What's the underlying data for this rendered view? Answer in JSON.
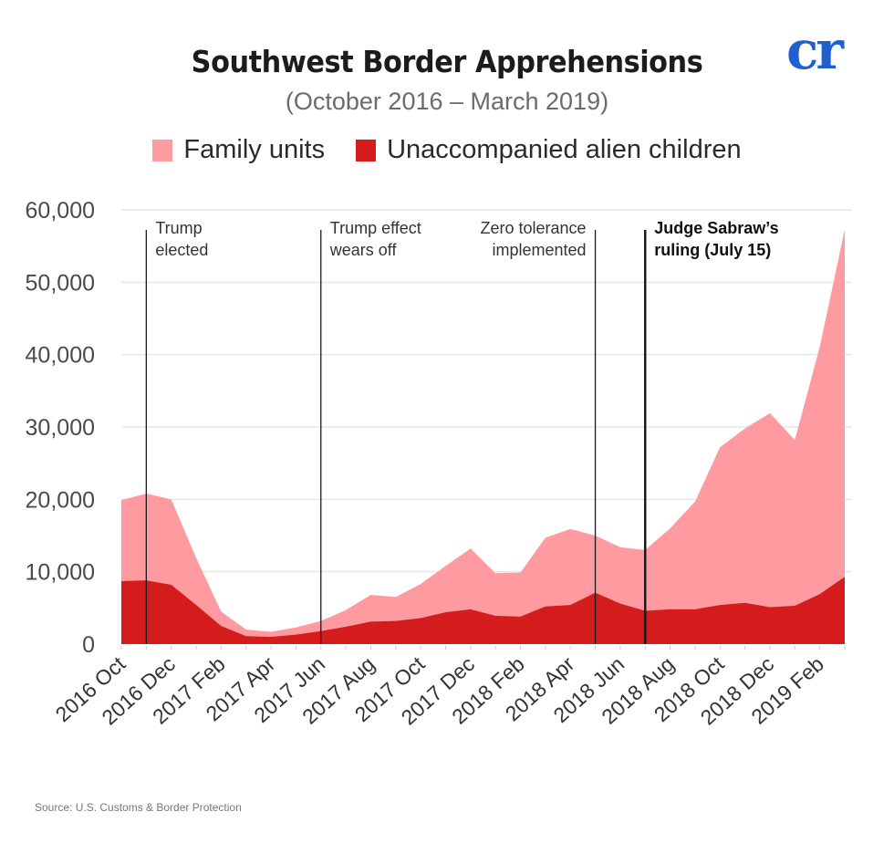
{
  "header": {
    "title": "Southwest Border Apprehensions",
    "subtitle": "(October 2016 – March 2019)",
    "logo_text": "cr"
  },
  "colors": {
    "family_units": "#ff9aa0",
    "unaccompanied": "#d41c1c",
    "logo": "#1f5fcf",
    "grid": "#e6e6e6"
  },
  "source": "Source: U.S. Customs & Border Protection",
  "chart_data": {
    "type": "area",
    "stacked": true,
    "title": "Southwest Border Apprehensions",
    "subtitle": "(October 2016 – March 2019)",
    "xlabel": "",
    "ylabel": "",
    "ylim": [
      0,
      60000
    ],
    "grid": true,
    "legend_position": "top-center",
    "y_ticks": [
      0,
      10000,
      20000,
      30000,
      40000,
      50000,
      60000
    ],
    "y_tick_labels": [
      "0",
      "10,000",
      "20,000",
      "30,000",
      "40,000",
      "50,000",
      "60,000"
    ],
    "x": [
      "2016 Oct",
      "2016 Nov",
      "2016 Dec",
      "2017 Jan",
      "2017 Feb",
      "2017 Mar",
      "2017 Apr",
      "2017 May",
      "2017 Jun",
      "2017 Jul",
      "2017 Aug",
      "2017 Sep",
      "2017 Oct",
      "2017 Nov",
      "2017 Dec",
      "2018 Jan",
      "2018 Feb",
      "2018 Mar",
      "2018 Apr",
      "2018 May",
      "2018 Jun",
      "2018 Jul",
      "2018 Aug",
      "2018 Sep",
      "2018 Oct",
      "2018 Nov",
      "2018 Dec",
      "2019 Jan",
      "2019 Feb",
      "2019 Mar"
    ],
    "x_tick_labels": [
      "2016 Oct",
      "2016 Dec",
      "2017 Feb",
      "2017 Apr",
      "2017 Jun",
      "2017 Aug",
      "2017 Oct",
      "2017 Dec",
      "2018 Feb",
      "2018 Apr",
      "2018 Jun",
      "2018 Aug",
      "2018 Oct",
      "2018 Dec",
      "2019 Feb"
    ],
    "series": [
      {
        "name": "Unaccompanied alien children",
        "values": [
          8700,
          8800,
          8200,
          5400,
          2500,
          1100,
          1000,
          1300,
          1800,
          2400,
          3100,
          3200,
          3600,
          4400,
          4800,
          3900,
          3800,
          5200,
          5400,
          7100,
          5600,
          4600,
          4800,
          4800,
          5400,
          5700,
          5100,
          5300,
          6900,
          9300
        ]
      },
      {
        "name": "Family units",
        "values": [
          11200,
          12000,
          11800,
          6500,
          2000,
          900,
          700,
          1000,
          1400,
          2300,
          3700,
          3300,
          4700,
          6400,
          8400,
          5900,
          6100,
          9500,
          10500,
          7900,
          7800,
          8400,
          11200,
          14900,
          21800,
          24100,
          26800,
          22900,
          34200,
          48000
        ]
      }
    ],
    "annotations": [
      {
        "label_lines": [
          "Trump",
          "elected"
        ],
        "x": "2016 Nov",
        "bold": false,
        "align": "left"
      },
      {
        "label_lines": [
          "Trump effect",
          "wears off"
        ],
        "x": "2017 Jun",
        "bold": false,
        "align": "left"
      },
      {
        "label_lines": [
          "Zero tolerance",
          "implemented"
        ],
        "x": "2018 May",
        "bold": false,
        "align": "right"
      },
      {
        "label_lines": [
          "Judge Sabraw’s",
          "ruling (July 15)"
        ],
        "x": "2018 Jul",
        "bold": true,
        "align": "left"
      }
    ]
  }
}
